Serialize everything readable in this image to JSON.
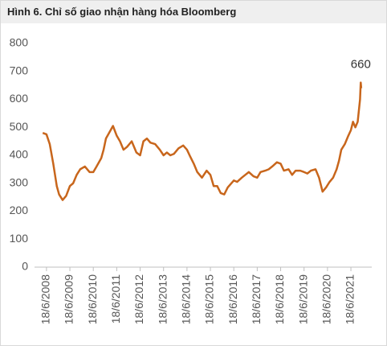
{
  "chart_data": {
    "type": "line",
    "title": "Hình 6. Chỉ số giao nhận hàng hóa Bloomberg",
    "annotation": "660",
    "x": [
      2008.3,
      2008.46,
      2008.6,
      2008.75,
      2008.9,
      2009.0,
      2009.15,
      2009.3,
      2009.46,
      2009.6,
      2009.75,
      2009.9,
      2010.1,
      2010.3,
      2010.46,
      2010.6,
      2010.8,
      2010.9,
      2011.0,
      2011.2,
      2011.3,
      2011.46,
      2011.6,
      2011.75,
      2011.9,
      2012.1,
      2012.3,
      2012.46,
      2012.6,
      2012.75,
      2012.9,
      2013.1,
      2013.3,
      2013.46,
      2013.6,
      2013.75,
      2013.9,
      2014.1,
      2014.3,
      2014.46,
      2014.6,
      2014.75,
      2014.9,
      2015.1,
      2015.3,
      2015.46,
      2015.6,
      2015.75,
      2015.9,
      2016.05,
      2016.2,
      2016.46,
      2016.6,
      2016.8,
      2016.95,
      2017.1,
      2017.3,
      2017.46,
      2017.6,
      2017.8,
      2017.95,
      2018.1,
      2018.3,
      2018.46,
      2018.6,
      2018.8,
      2018.95,
      2019.1,
      2019.3,
      2019.46,
      2019.6,
      2019.75,
      2019.95,
      2020.1,
      2020.25,
      2020.4,
      2020.55,
      2020.7,
      2020.85,
      2020.95,
      2021.05,
      2021.2,
      2021.35,
      2021.46,
      2021.55,
      2021.65,
      2021.75,
      2021.8,
      2021.85,
      2021.88,
      2021.9
    ],
    "series": [
      {
        "color": "#c8661c",
        "values": [
          480,
          475,
          440,
          370,
          290,
          260,
          240,
          255,
          290,
          300,
          330,
          350,
          360,
          340,
          340,
          360,
          390,
          420,
          460,
          490,
          505,
          470,
          450,
          420,
          430,
          450,
          410,
          400,
          450,
          460,
          445,
          440,
          420,
          400,
          410,
          400,
          405,
          425,
          435,
          420,
          395,
          370,
          340,
          320,
          345,
          330,
          290,
          290,
          265,
          260,
          285,
          310,
          305,
          320,
          330,
          340,
          325,
          320,
          340,
          345,
          350,
          360,
          375,
          370,
          345,
          350,
          330,
          345,
          345,
          340,
          335,
          345,
          350,
          320,
          270,
          285,
          305,
          320,
          350,
          380,
          420,
          440,
          470,
          490,
          520,
          500,
          520,
          560,
          600,
          660,
          640
        ]
      }
    ],
    "xlim": [
      2007.95,
      2022.35
    ],
    "xticks": [
      {
        "value": 2008.46,
        "label": "18/6/2008"
      },
      {
        "value": 2009.46,
        "label": "18/6/2009"
      },
      {
        "value": 2010.46,
        "label": "18/6/2010"
      },
      {
        "value": 2011.46,
        "label": "18/6/2011"
      },
      {
        "value": 2012.46,
        "label": "18/6/2012"
      },
      {
        "value": 2013.46,
        "label": "18/6/2013"
      },
      {
        "value": 2014.46,
        "label": "18/6/2014"
      },
      {
        "value": 2015.46,
        "label": "18/6/2015"
      },
      {
        "value": 2016.46,
        "label": "18/6/2016"
      },
      {
        "value": 2017.46,
        "label": "18/6/2017"
      },
      {
        "value": 2018.46,
        "label": "18/6/2018"
      },
      {
        "value": 2019.46,
        "label": "18/6/2019"
      },
      {
        "value": 2020.46,
        "label": "18/6/2020"
      },
      {
        "value": 2021.46,
        "label": "18/6/2021"
      }
    ],
    "ylim": [
      0,
      800
    ],
    "yticks": [
      0,
      100,
      200,
      300,
      400,
      500,
      600,
      700,
      800
    ],
    "grid": false
  }
}
